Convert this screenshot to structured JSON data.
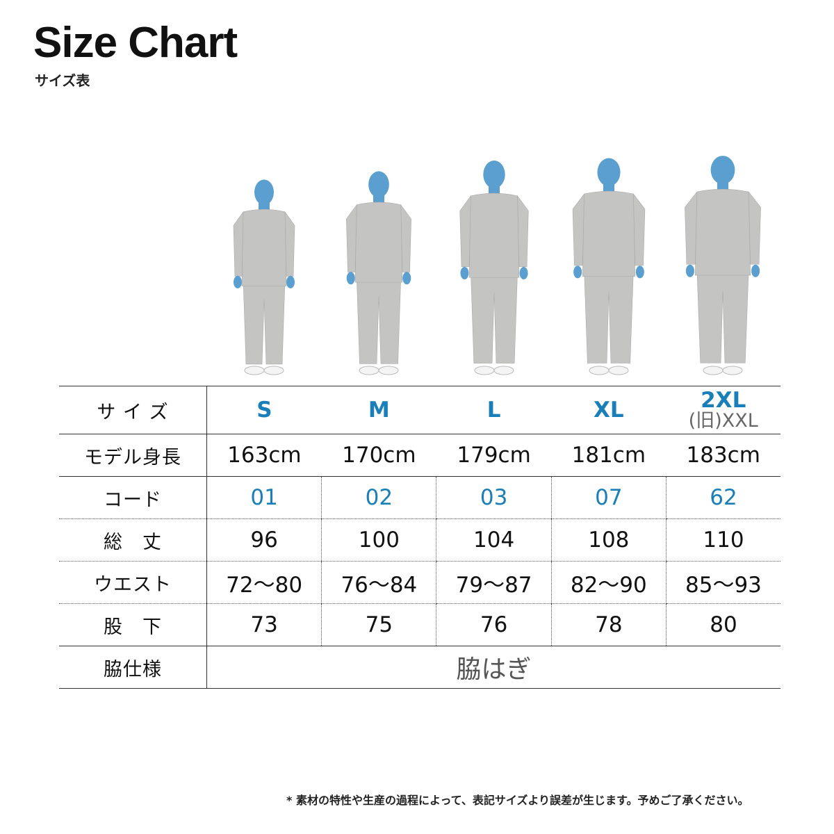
{
  "header": {
    "title": "Size Chart",
    "subtitle": "サイズ表"
  },
  "colors": {
    "accent": "#1a7fb8",
    "figure_head": "#5a9fd0",
    "garment": "#c4c5c3"
  },
  "sizes": [
    {
      "size": "S",
      "height": "163cm",
      "code": "01",
      "length": "96",
      "waist": "72〜80",
      "inseam": "73",
      "model_cm": 163
    },
    {
      "size": "M",
      "height": "170cm",
      "code": "02",
      "length": "100",
      "waist": "76〜84",
      "inseam": "75",
      "model_cm": 170
    },
    {
      "size": "L",
      "height": "179cm",
      "code": "03",
      "length": "104",
      "waist": "79〜87",
      "inseam": "76",
      "model_cm": 179
    },
    {
      "size": "XL",
      "height": "181cm",
      "code": "07",
      "length": "108",
      "waist": "82〜90",
      "inseam": "78",
      "model_cm": 181
    },
    {
      "size": "2XL",
      "old_size": "(旧)XXL",
      "height": "183cm",
      "code": "62",
      "length": "110",
      "waist": "85〜93",
      "inseam": "80",
      "model_cm": 183
    }
  ],
  "row_labels": {
    "size": "サ イ ズ",
    "height": "モデル身長",
    "code": "コード",
    "length": "総　丈",
    "waist": "ウエスト",
    "inseam": "股　下",
    "side": "脇仕様"
  },
  "side_spec": "脇はぎ",
  "note": "* 素材の特性や生産の過程によって、表記サイズより誤差が生じます。予めご了承ください。"
}
